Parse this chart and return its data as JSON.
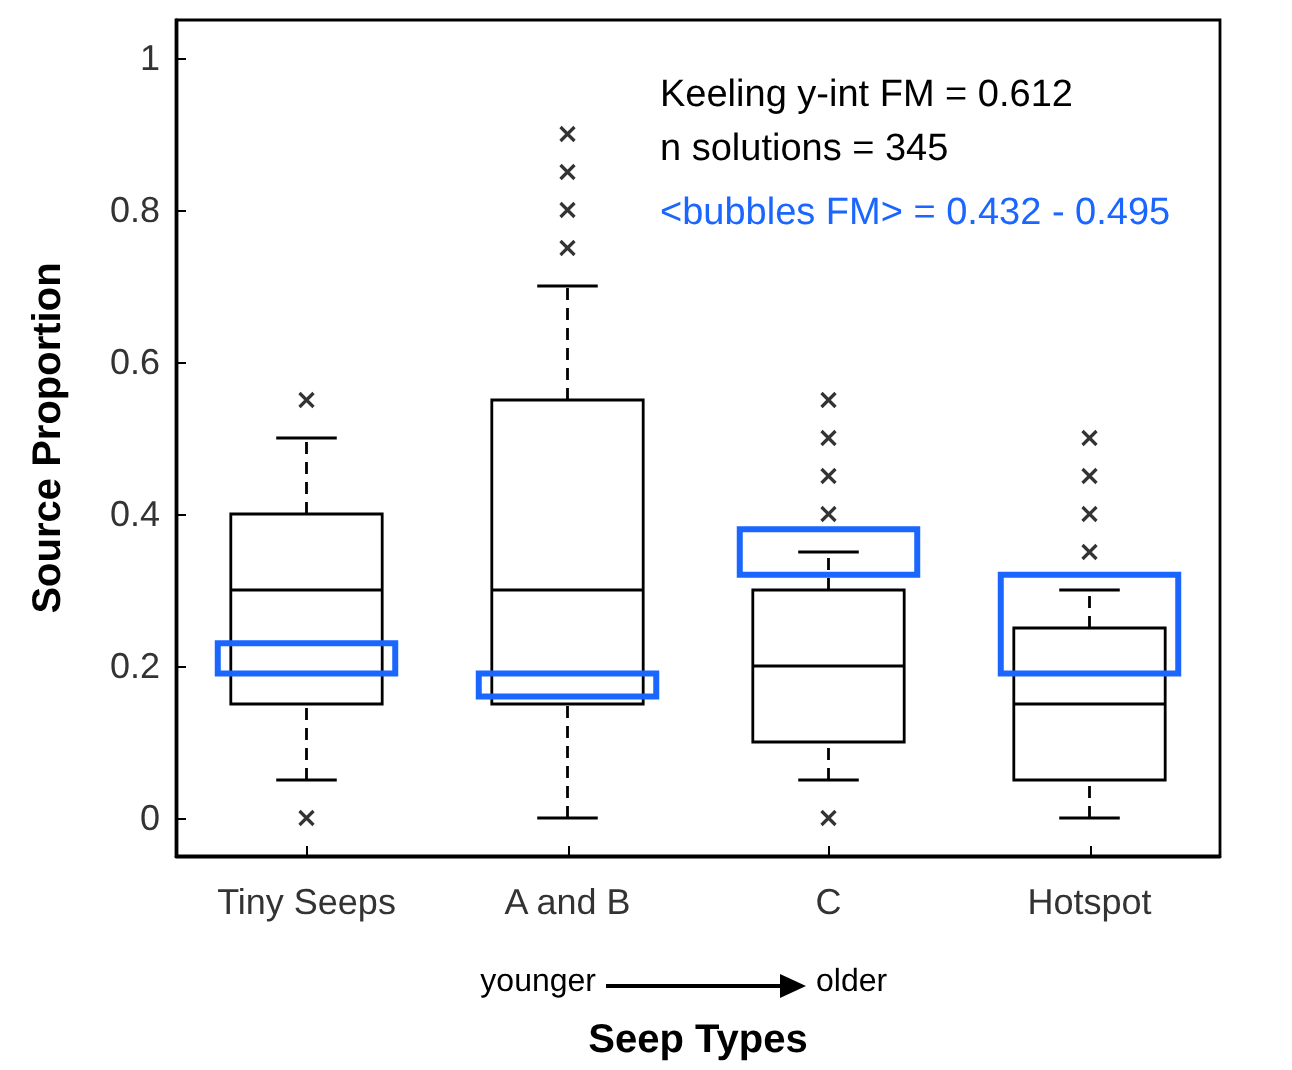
{
  "chart_data": {
    "type": "box",
    "xlabel": "Seep Types",
    "ylabel": "Source Proportion",
    "categories": [
      "Tiny Seeps",
      "A and B",
      "C",
      "Hotspot"
    ],
    "ylim": [
      -0.05,
      1.05
    ],
    "yticks": [
      0,
      0.2,
      0.4,
      0.6,
      0.8,
      1
    ],
    "marker": "cross",
    "annotations": [
      "Keeling y-int FM = 0.612",
      "n solutions = 345",
      "<bubbles FM> = 0.432 - 0.495",
      "younger",
      "older"
    ],
    "series": [
      {
        "color": "#000000",
        "line_style": "dashed",
        "boxes": [
          {
            "low": 0.05,
            "q1": 0.15,
            "median": 0.3,
            "q3": 0.4,
            "high": 0.5,
            "outliers": [
              0,
              0.55
            ]
          },
          {
            "low": 0,
            "q1": 0.15,
            "median": 0.3,
            "q3": 0.55,
            "high": 0.7,
            "outliers": [
              0.75,
              0.8,
              0.85,
              0.9
            ]
          },
          {
            "low": 0.05,
            "q1": 0.1,
            "median": 0.2,
            "q3": 0.3,
            "high": 0.35,
            "outliers": [
              0,
              0.4,
              0.45,
              0.5,
              0.55
            ]
          },
          {
            "low": 0,
            "q1": 0.05,
            "median": 0.15,
            "q3": 0.25,
            "high": 0.3,
            "outliers": [
              0.35,
              0.4,
              0.45,
              0.5
            ]
          }
        ]
      },
      {
        "type": "bar",
        "color": "#1a66ff",
        "base": [
          0.19,
          0.16,
          0.32,
          0.19
        ],
        "values": [
          0.04,
          0.03,
          0.06,
          0.13
        ]
      }
    ]
  }
}
